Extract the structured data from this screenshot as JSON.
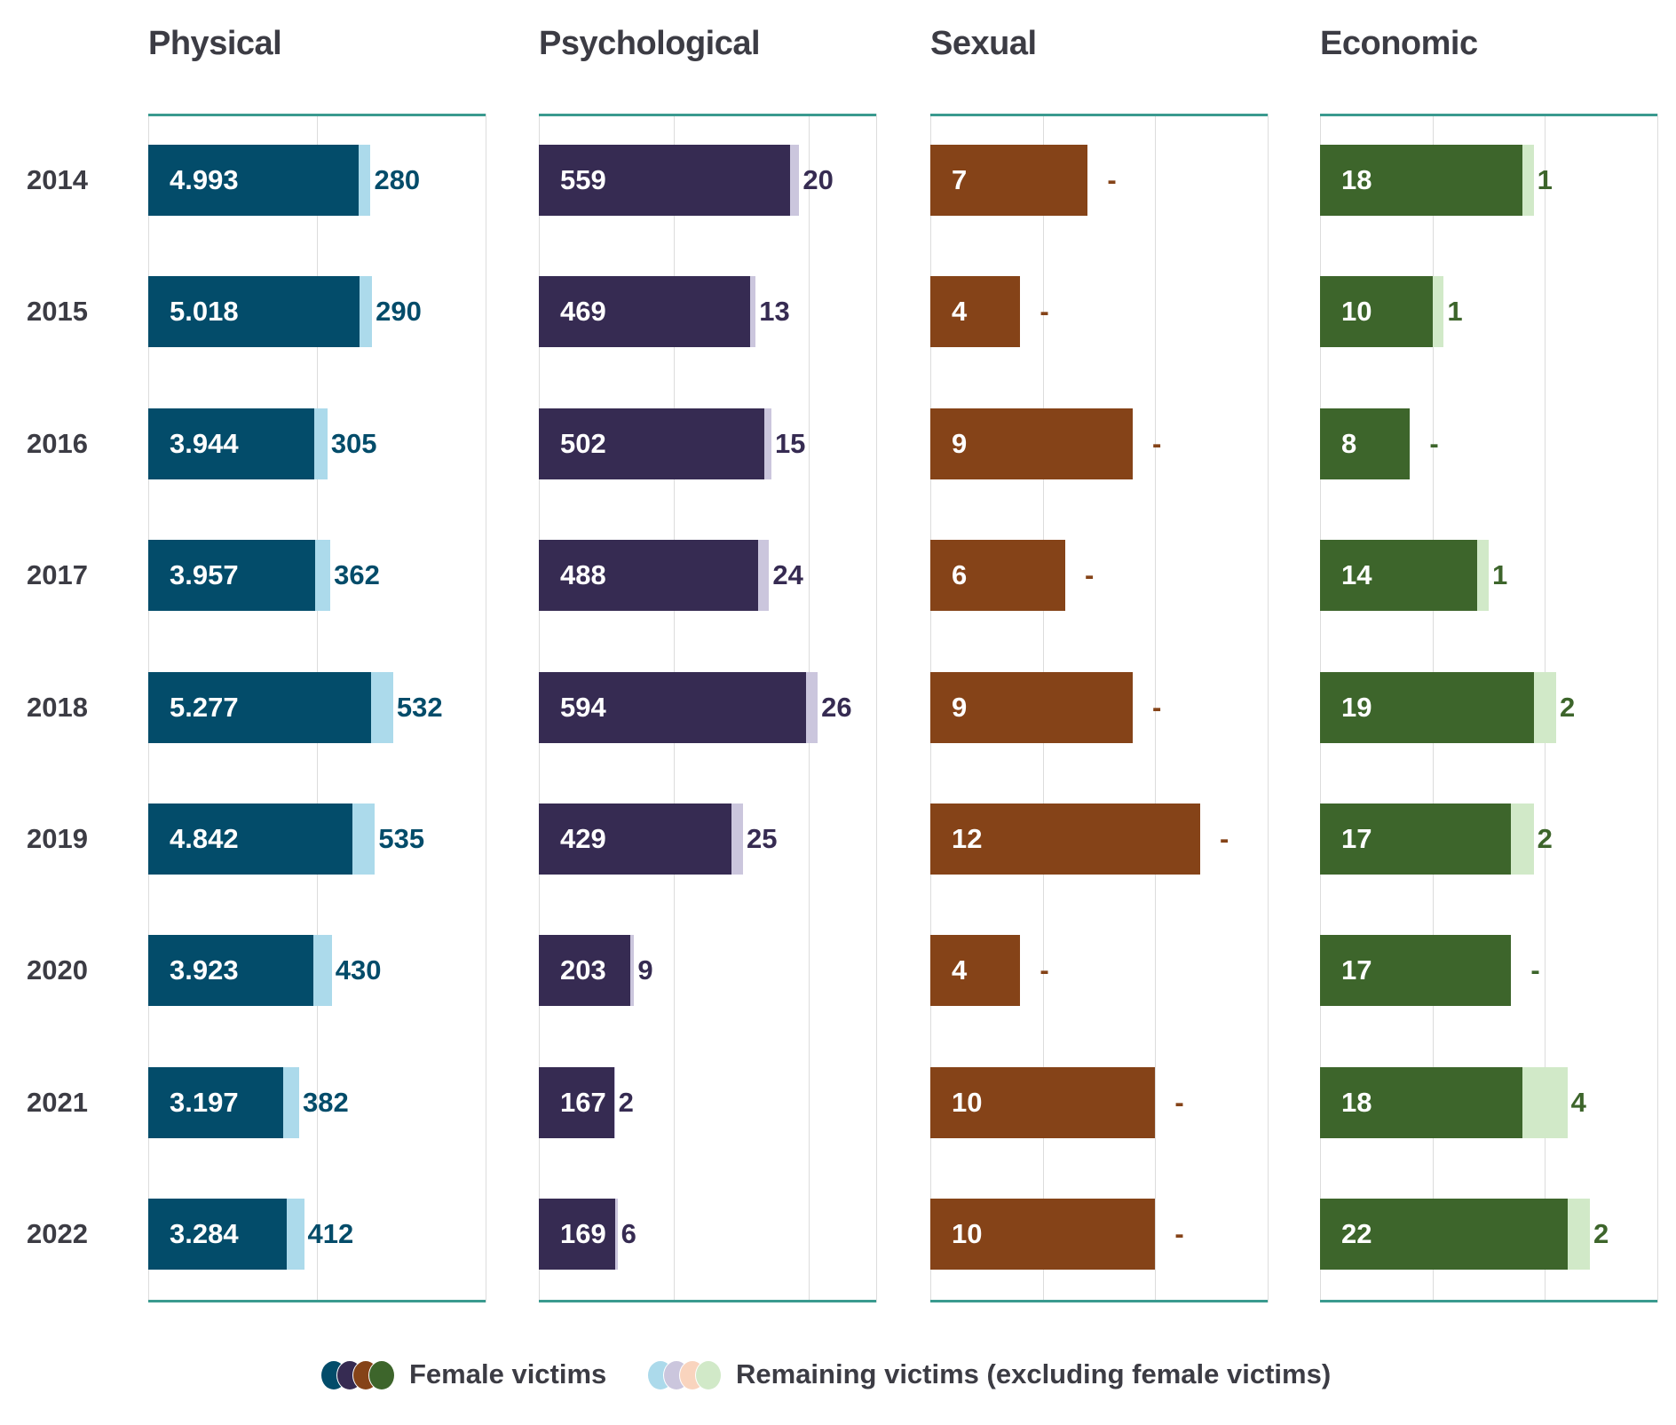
{
  "chart_data": {
    "type": "bar",
    "orientation": "horizontal",
    "stacked": true,
    "categories": [
      "2014",
      "2015",
      "2016",
      "2017",
      "2018",
      "2019",
      "2020",
      "2021",
      "2022"
    ],
    "legend": {
      "position": "bottom",
      "entries": [
        "Female victims",
        "Remaining victims (excluding female victims)"
      ]
    },
    "panels": [
      {
        "title": "Physical",
        "xlim": [
          0,
          8000
        ],
        "gridlines": [
          4000
        ],
        "color": "#034c6a",
        "light_color": "#acdaeb",
        "female": [
          4993,
          5018,
          3944,
          3957,
          5277,
          4842,
          3923,
          3197,
          3284
        ],
        "female_labels": [
          "4.993",
          "5.018",
          "3.944",
          "3.957",
          "5.277",
          "4.842",
          "3.923",
          "3.197",
          "3.284"
        ],
        "remaining": [
          280,
          290,
          305,
          362,
          532,
          535,
          430,
          382,
          412
        ],
        "remaining_labels": [
          "280",
          "290",
          "305",
          "362",
          "532",
          "535",
          "430",
          "382",
          "412"
        ]
      },
      {
        "title": "Psychological",
        "xlim": [
          0,
          750
        ],
        "gridlines": [
          300,
          600
        ],
        "color": "#362b52",
        "light_color": "#cbc6dd",
        "female": [
          559,
          469,
          502,
          488,
          594,
          429,
          203,
          167,
          169
        ],
        "female_labels": [
          "559",
          "469",
          "502",
          "488",
          "594",
          "429",
          "203",
          "167",
          "169"
        ],
        "remaining": [
          20,
          13,
          15,
          24,
          26,
          25,
          9,
          2,
          6
        ],
        "remaining_labels": [
          "20",
          "13",
          "15",
          "24",
          "26",
          "25",
          "9",
          "2",
          "6"
        ]
      },
      {
        "title": "Sexual",
        "xlim": [
          0,
          15
        ],
        "gridlines": [
          5,
          10
        ],
        "color": "#854318",
        "light_color": "#f9d4be",
        "female": [
          7,
          4,
          9,
          6,
          9,
          12,
          4,
          10,
          10
        ],
        "female_labels": [
          "7",
          "4",
          "9",
          "6",
          "9",
          "12",
          "4",
          "10",
          "10"
        ],
        "remaining": [
          0,
          0,
          0,
          0,
          0,
          0,
          0,
          0,
          0
        ],
        "remaining_labels": [
          "-",
          "-",
          "-",
          "-",
          "-",
          "-",
          "-",
          "-",
          "-"
        ]
      },
      {
        "title": "Economic",
        "xlim": [
          0,
          30
        ],
        "gridlines": [
          10,
          20
        ],
        "color": "#3d652b",
        "light_color": "#d1e9c8",
        "female": [
          18,
          10,
          8,
          14,
          19,
          17,
          17,
          18,
          22
        ],
        "female_labels": [
          "18",
          "10",
          "8",
          "14",
          "19",
          "17",
          "17",
          "18",
          "22"
        ],
        "remaining": [
          1,
          1,
          0,
          1,
          2,
          2,
          0,
          4,
          2
        ],
        "remaining_labels": [
          "1",
          "1",
          "-",
          "1",
          "2",
          "2",
          "-",
          "4",
          "2"
        ]
      }
    ]
  }
}
